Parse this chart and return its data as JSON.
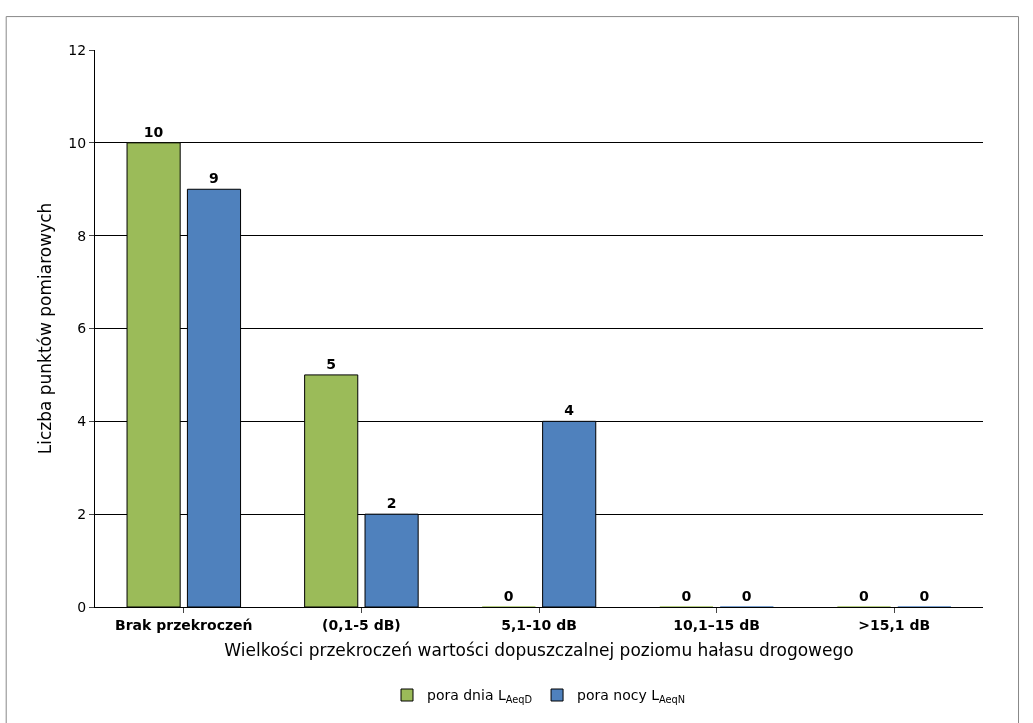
{
  "chart_data": {
    "type": "bar",
    "xlabel": "Wielkości przekroczeń wartości dopuszczalnej poziomu hałasu drogowego",
    "ylabel": "Liczba punktów pomiarowych",
    "categories": [
      "Brak przekroczeń",
      "(0,1-5 dB)",
      "5,1-10 dB",
      "10,1–15 dB",
      ">15,1 dB"
    ],
    "series": [
      {
        "name": "pora dnia L$_{AeqD}$",
        "color": "#9bbb59",
        "values": [
          10,
          5,
          0,
          0,
          0
        ]
      },
      {
        "name": "pora nocy L$_{AeqN}$",
        "color": "#4f81bd",
        "values": [
          9,
          2,
          4,
          0,
          0
        ]
      }
    ],
    "ylim": [
      0,
      12
    ],
    "yticks": [
      0,
      2,
      4,
      6,
      8,
      10,
      12
    ],
    "grid": "y",
    "legend": "bottom",
    "data_labels": true
  }
}
